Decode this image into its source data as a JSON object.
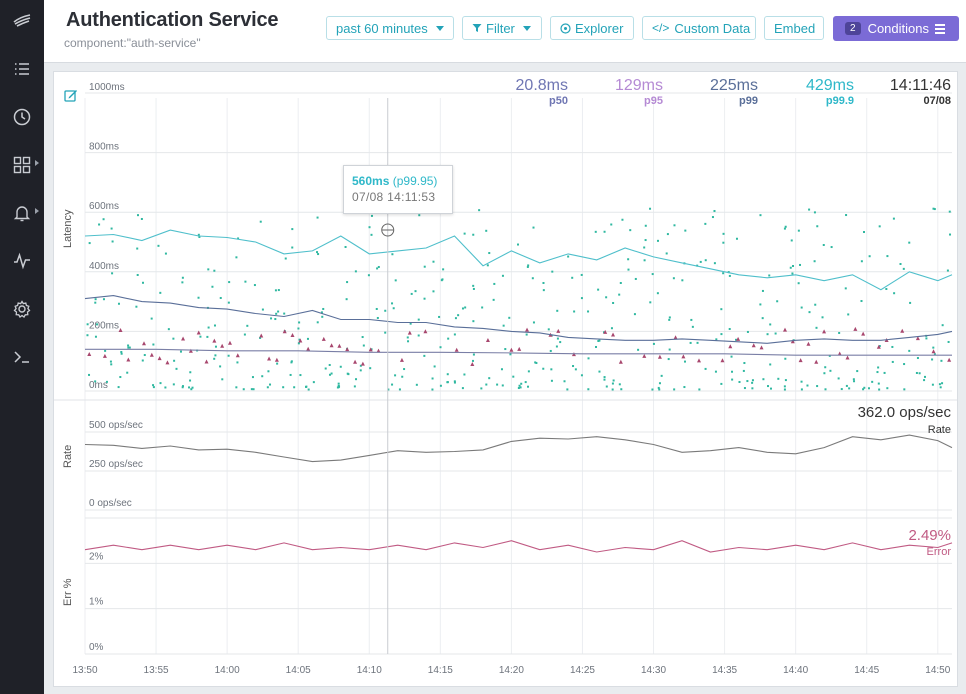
{
  "header": {
    "title": "Authentication Service",
    "subtitle": "component:\"auth-service\"",
    "time_range": "past 60 minutes",
    "filter": "Filter",
    "explorer": "Explorer",
    "custom_data": "Custom Data",
    "embed": "Embed",
    "conditions_label": "Conditions",
    "conditions_count": "2"
  },
  "sidebar": {
    "items": [
      {
        "icon": "logo-icon"
      },
      {
        "icon": "list-icon"
      },
      {
        "icon": "clock-icon"
      },
      {
        "icon": "dashboard-grid-icon",
        "has_submenu": true
      },
      {
        "icon": "bell-icon",
        "has_submenu": true
      },
      {
        "icon": "activity-icon"
      },
      {
        "icon": "gear-icon"
      },
      {
        "icon": "terminal-icon"
      }
    ]
  },
  "stats": {
    "p50": {
      "value": "20.8ms",
      "label": "p50",
      "color": "#6f76b3"
    },
    "p95": {
      "value": "129ms",
      "label": "p95",
      "color": "#b58ad4"
    },
    "p99": {
      "value": "225ms",
      "label": "p99",
      "color": "#5a6f99"
    },
    "p999": {
      "value": "429ms",
      "label": "p99.9",
      "color": "#2fb8c9"
    },
    "time": {
      "value": "14:11:46",
      "label": "07/08",
      "color": "#333333"
    }
  },
  "tooltip": {
    "value": "560ms",
    "percentile": "(p99.95)",
    "timestamp": "07/08 14:11:53"
  },
  "chart_data": [
    {
      "type": "scatter",
      "ylabel": "Latency",
      "y_tick_labels": [
        "1000ms",
        "800ms",
        "600ms",
        "400ms",
        "200ms",
        "0ms"
      ],
      "ylim": [
        0,
        1000
      ],
      "x_tick_labels": [
        "13:50",
        "13:55",
        "14:00",
        "14:05",
        "14:10",
        "14:15",
        "14:20",
        "14:25",
        "14:30",
        "14:35",
        "14:40",
        "14:45",
        "14:50"
      ],
      "xlim_minutes": [
        0,
        61
      ],
      "colors": {
        "p999": "#4fbfcb",
        "p99": "#5a6f99",
        "p50": "#7a7fa6",
        "dots": "#2fb8a0",
        "triangles": "#a8476e"
      },
      "series": [
        {
          "name": "p99.9",
          "x": [
            0,
            2,
            4,
            6,
            8,
            10,
            12,
            14,
            16,
            18,
            20,
            22,
            24,
            26,
            28,
            30,
            32,
            34,
            36,
            38,
            40,
            42,
            44,
            46,
            48,
            50,
            52,
            54,
            56,
            58,
            60,
            61
          ],
          "values": [
            520,
            525,
            505,
            540,
            520,
            515,
            500,
            460,
            470,
            520,
            460,
            470,
            480,
            520,
            420,
            470,
            430,
            460,
            440,
            480,
            450,
            430,
            410,
            390,
            380,
            390,
            370,
            390,
            340,
            400,
            370,
            390
          ]
        },
        {
          "name": "p99",
          "x": [
            0,
            2,
            4,
            6,
            8,
            10,
            12,
            14,
            16,
            18,
            20,
            22,
            24,
            26,
            28,
            30,
            32,
            34,
            36,
            38,
            40,
            42,
            44,
            46,
            48,
            50,
            52,
            54,
            56,
            58,
            60,
            61
          ],
          "values": [
            310,
            320,
            300,
            295,
            280,
            275,
            260,
            250,
            270,
            240,
            240,
            230,
            230,
            215,
            210,
            200,
            195,
            180,
            175,
            170,
            170,
            175,
            170,
            165,
            160,
            170,
            175,
            170,
            170,
            180,
            190,
            200
          ]
        },
        {
          "name": "p50",
          "x": [
            0,
            5,
            10,
            15,
            20,
            25,
            30,
            35,
            40,
            45,
            50,
            55,
            61
          ],
          "values": [
            140,
            140,
            135,
            135,
            130,
            130,
            128,
            125,
            125,
            125,
            120,
            120,
            120
          ]
        }
      ]
    },
    {
      "type": "line",
      "ylabel": "Rate",
      "value_label": "362.0 ops/sec",
      "series_label": "Rate",
      "y_tick_labels": [
        "500 ops/sec",
        "250 ops/sec",
        "0 ops/sec"
      ],
      "ylim": [
        0,
        500
      ],
      "color": "#7a7a7a",
      "series": [
        {
          "name": "Rate",
          "x": [
            0,
            2,
            4,
            6,
            8,
            10,
            12,
            14,
            16,
            18,
            20,
            22,
            24,
            26,
            28,
            30,
            32,
            34,
            36,
            38,
            40,
            42,
            44,
            46,
            48,
            50,
            52,
            54,
            56,
            58,
            60,
            61
          ],
          "values": [
            420,
            415,
            395,
            410,
            385,
            390,
            370,
            340,
            310,
            320,
            350,
            380,
            370,
            375,
            385,
            440,
            460,
            455,
            470,
            450,
            420,
            370,
            380,
            400,
            370,
            360,
            400,
            470,
            450,
            480,
            445,
            400
          ]
        }
      ]
    },
    {
      "type": "line",
      "ylabel": "Err %",
      "value_label": "2.49%",
      "series_label": "Error",
      "y_tick_labels": [
        "2%",
        "1%",
        "0%"
      ],
      "ylim": [
        0,
        3
      ],
      "color": "#c05a83",
      "series": [
        {
          "name": "Error",
          "x": [
            0,
            2,
            4,
            6,
            8,
            10,
            12,
            14,
            16,
            18,
            20,
            22,
            24,
            26,
            28,
            30,
            32,
            34,
            36,
            38,
            40,
            42,
            44,
            46,
            48,
            50,
            52,
            54,
            56,
            58,
            60,
            61
          ],
          "values": [
            2.3,
            2.4,
            2.3,
            2.4,
            2.3,
            2.4,
            2.3,
            2.45,
            2.3,
            2.35,
            2.3,
            2.4,
            2.3,
            2.45,
            2.35,
            2.5,
            2.3,
            2.4,
            2.25,
            2.35,
            2.3,
            2.5,
            2.25,
            2.35,
            2.3,
            2.4,
            2.3,
            2.45,
            2.3,
            2.4,
            2.35,
            2.45
          ]
        }
      ]
    }
  ]
}
